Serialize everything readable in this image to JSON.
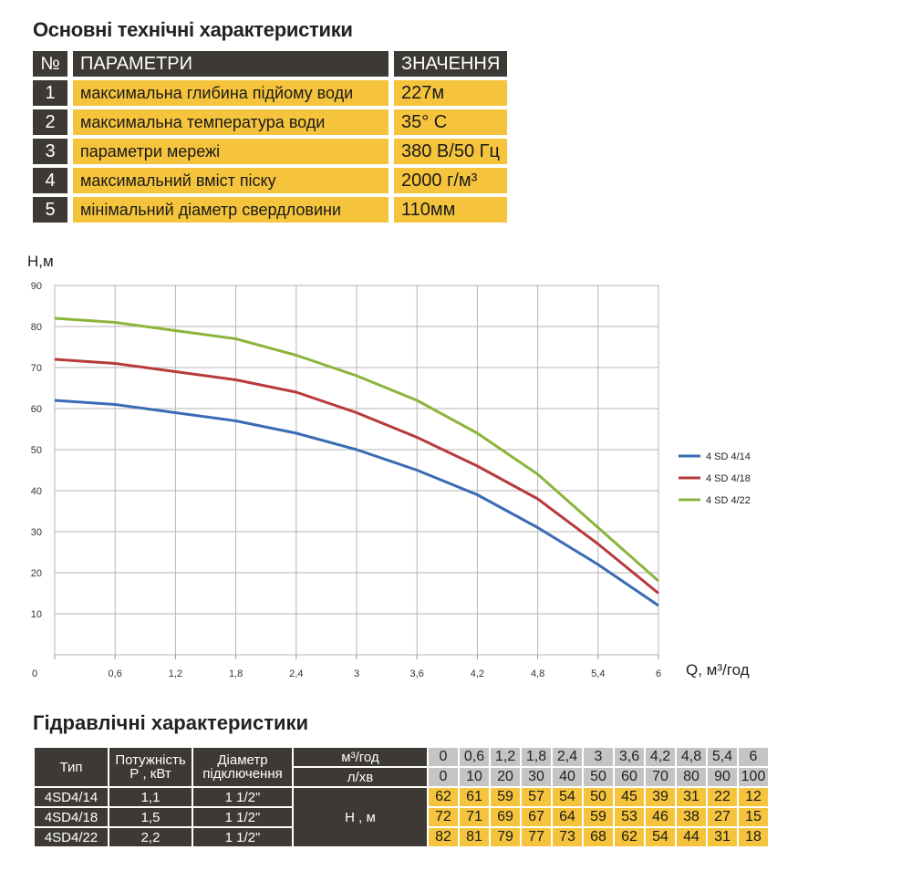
{
  "spec": {
    "title": "Основні технічні характеристики",
    "header": {
      "num": "№",
      "param": "ПАРАМЕТРИ",
      "value": "ЗНАЧЕННЯ"
    },
    "rows": [
      {
        "num": "1",
        "param": "максимальна глибина підйому води",
        "value": "227м"
      },
      {
        "num": "2",
        "param": "максимальна температура води",
        "value": "35° С"
      },
      {
        "num": "3",
        "param": "параметри мережі",
        "value": "380 В/50 Гц"
      },
      {
        "num": "4",
        "param": "максимальний вміст піску",
        "value": "2000 г/м³"
      },
      {
        "num": "5",
        "param": "мінімальний діаметр свердловини",
        "value": "110мм"
      }
    ]
  },
  "chart_data": {
    "type": "line",
    "ylabel": "H,м",
    "xlabel": "Q, м³/год",
    "x": [
      0,
      0.6,
      1.2,
      1.8,
      2.4,
      3,
      3.6,
      4.2,
      4.8,
      5.4,
      6
    ],
    "x_tick_labels": [
      "0",
      "0,6",
      "1,2",
      "1,8",
      "2,4",
      "3",
      "3,6",
      "4,2",
      "4,8",
      "5,4",
      "6"
    ],
    "y_ticks": [
      10,
      20,
      30,
      40,
      50,
      60,
      70,
      80,
      90
    ],
    "xlim": [
      0,
      6
    ],
    "ylim": [
      0,
      90
    ],
    "grid": true,
    "legend_position": "right",
    "series": [
      {
        "name": "4 SD 4/14",
        "color": "#3a6bb5",
        "values": [
          62,
          61,
          59,
          57,
          54,
          50,
          45,
          39,
          31,
          22,
          12
        ]
      },
      {
        "name": "4 SD 4/18",
        "color": "#b83a3a",
        "values": [
          72,
          71,
          69,
          67,
          64,
          59,
          53,
          46,
          38,
          27,
          15
        ]
      },
      {
        "name": "4 SD 4/22",
        "color": "#8bb53a",
        "values": [
          82,
          81,
          79,
          77,
          73,
          68,
          62,
          54,
          44,
          31,
          18
        ]
      }
    ]
  },
  "hydraulic": {
    "title": "Гідравлічні характеристики",
    "headers": {
      "type": "Тип",
      "power": "Потужність Р , кВт",
      "diameter": "Діаметр підключення",
      "unit_q": "м³/год",
      "unit_l": "л/хв",
      "unit_h": "Н , м"
    },
    "q_m3h": [
      "0",
      "0,6",
      "1,2",
      "1,8",
      "2,4",
      "3",
      "3,6",
      "4,2",
      "4,8",
      "5,4",
      "6"
    ],
    "q_lmin": [
      "0",
      "10",
      "20",
      "30",
      "40",
      "50",
      "60",
      "70",
      "80",
      "90",
      "100"
    ],
    "rows": [
      {
        "type": "4SD4/14",
        "power": "1,1",
        "diameter": "1 1/2\"",
        "h": [
          "62",
          "61",
          "59",
          "57",
          "54",
          "50",
          "45",
          "39",
          "31",
          "22",
          "12"
        ]
      },
      {
        "type": "4SD4/18",
        "power": "1,5",
        "diameter": "1 1/2\"",
        "h": [
          "72",
          "71",
          "69",
          "67",
          "64",
          "59",
          "53",
          "46",
          "38",
          "27",
          "15"
        ]
      },
      {
        "type": "4SD4/22",
        "power": "2,2",
        "diameter": "1 1/2\"",
        "h": [
          "82",
          "81",
          "79",
          "77",
          "73",
          "68",
          "62",
          "54",
          "44",
          "31",
          "18"
        ]
      }
    ]
  }
}
